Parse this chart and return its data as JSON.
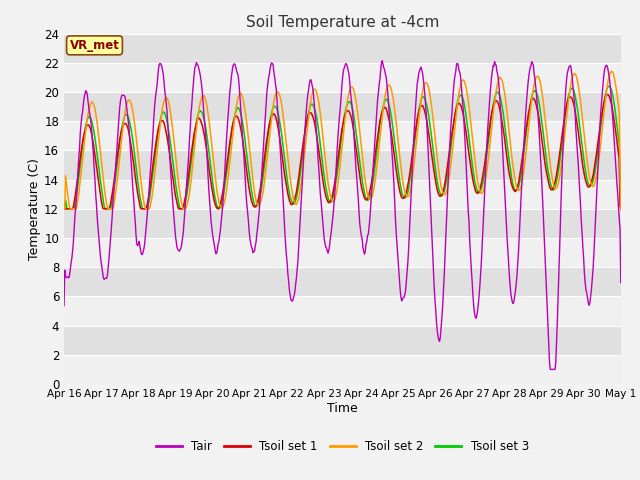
{
  "title": "Soil Temperature at -4cm",
  "xlabel": "Time",
  "ylabel": "Temperature (C)",
  "ylim": [
    0,
    24
  ],
  "x_tick_labels": [
    "Apr 16",
    "Apr 17",
    "Apr 18",
    "Apr 19",
    "Apr 20",
    "Apr 21",
    "Apr 22",
    "Apr 23",
    "Apr 24",
    "Apr 25",
    "Apr 26",
    "Apr 27",
    "Apr 28",
    "Apr 29",
    "Apr 30",
    "May 1"
  ],
  "annotation_text": "VR_met",
  "bg_color": "#E0E0E0",
  "line_colors": {
    "Tair": "#BB00BB",
    "Tsoil1": "#DD0000",
    "Tsoil2": "#FF9900",
    "Tsoil3": "#00CC00"
  },
  "legend_labels": [
    "Tair",
    "Tsoil set 1",
    "Tsoil set 2",
    "Tsoil set 3"
  ],
  "yticks": [
    0,
    2,
    4,
    6,
    8,
    10,
    12,
    14,
    16,
    18,
    20,
    22,
    24
  ]
}
